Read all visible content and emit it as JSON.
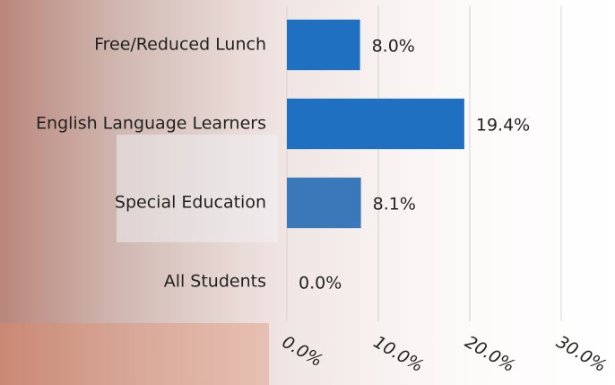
{
  "chart_data": {
    "type": "bar",
    "orientation": "horizontal",
    "categories": [
      "Free/Reduced Lunch",
      "English Language Learners",
      "Special Education",
      "All Students"
    ],
    "values": [
      8.0,
      19.4,
      8.1,
      0.0
    ],
    "value_labels": [
      "8.0%",
      "19.4%",
      "8.1%",
      "0.0%"
    ],
    "colors": [
      "#1f70c1",
      "#1f70c1",
      "#3a78ba",
      "#1f70c1"
    ],
    "xlim": [
      0,
      30
    ],
    "xticks": [
      {
        "value": 0,
        "label": "0.0%"
      },
      {
        "value": 10,
        "label": "10.0%"
      },
      {
        "value": 20,
        "label": "20.0%"
      },
      {
        "value": 30,
        "label": "30.0%"
      }
    ],
    "grid": true
  }
}
